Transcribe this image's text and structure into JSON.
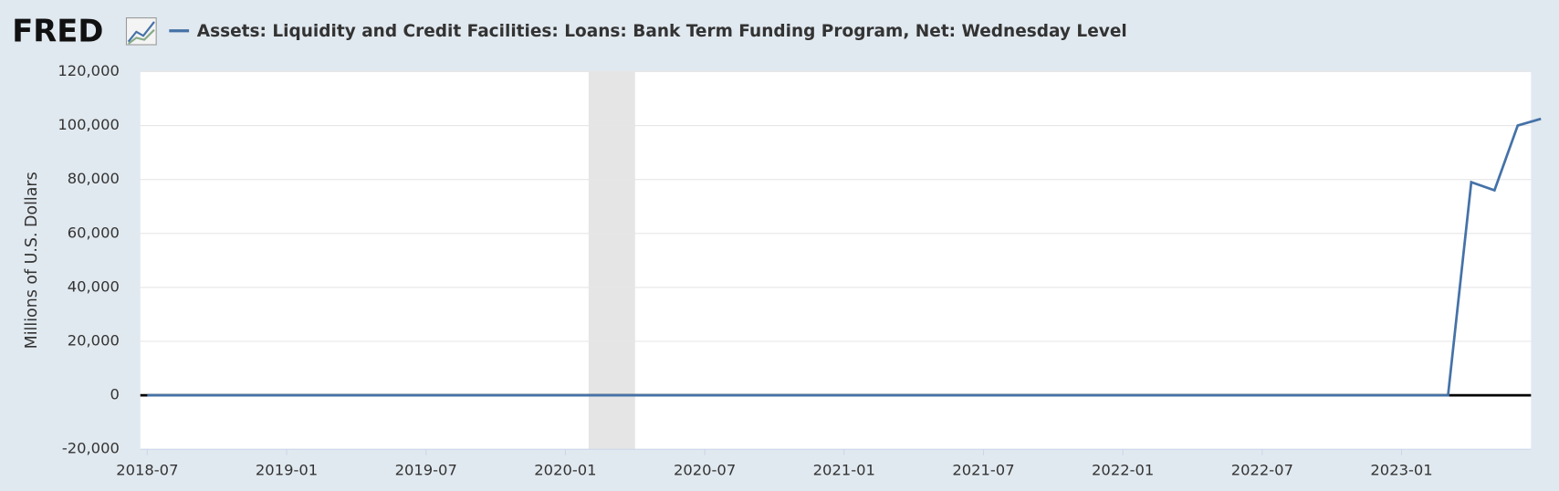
{
  "header": {
    "logo": "FRED"
  },
  "chart_data": {
    "type": "line",
    "y_label": "Millions of U.S. Dollars",
    "x": [
      "2018-07",
      "2023-03",
      "2023-04",
      "2023-05",
      "2023-06",
      "2023-07"
    ],
    "series": [
      {
        "name": "Assets: Liquidity and Credit Facilities: Loans: Bank Term Funding Program, Net: Wednesday Level",
        "color": "#4572a7",
        "values": [
          0,
          0,
          79000,
          76000,
          100000,
          102500
        ]
      }
    ],
    "xlim": [
      "2018-07",
      "2023-07"
    ],
    "xticks": [
      "2018-07",
      "2019-01",
      "2019-07",
      "2020-01",
      "2020-07",
      "2021-01",
      "2021-07",
      "2022-01",
      "2022-07",
      "2023-01"
    ],
    "ylim": [
      -20000,
      120000
    ],
    "yticks": [
      {
        "value": -20000,
        "label": "-20,000"
      },
      0,
      {
        "value": 20000,
        "label": "20,000"
      },
      {
        "value": 40000,
        "label": "40,000"
      },
      {
        "value": 60000,
        "label": "60,000"
      },
      {
        "value": 80000,
        "label": "80,000"
      },
      {
        "value": 100000,
        "label": "100,000"
      },
      {
        "value": 120000,
        "label": "120,000"
      }
    ],
    "recessions": [
      {
        "start": "2020-02",
        "end": "2020-04"
      }
    ],
    "grid": true
  }
}
